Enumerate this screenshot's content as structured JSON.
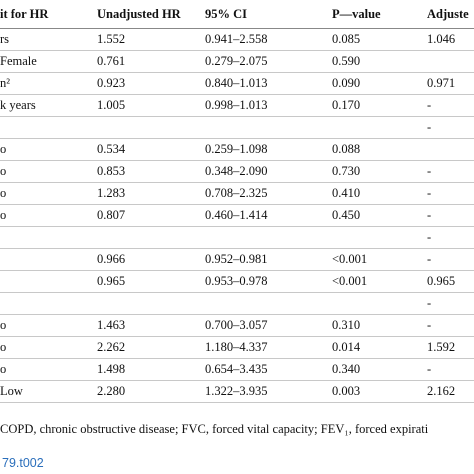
{
  "table": {
    "header": [
      "it for HR",
      "Unadjusted HR",
      "95% CI",
      "P—value",
      "Adjuste"
    ],
    "rows": [
      [
        "rs",
        "1.552",
        "0.941–2.558",
        "0.085",
        "1.046"
      ],
      [
        "Female",
        "0.761",
        "0.279–2.075",
        "0.590",
        null
      ],
      [
        "n²",
        "0.923",
        "0.840–1.013",
        "0.090",
        "0.971"
      ],
      [
        "k years",
        "1.005",
        "0.998–1.013",
        "0.170",
        "-"
      ],
      [
        null,
        null,
        null,
        null,
        "-"
      ],
      [
        "o",
        "0.534",
        "0.259–1.098",
        "0.088",
        null
      ],
      [
        "o",
        "0.853",
        "0.348–2.090",
        "0.730",
        "-"
      ],
      [
        "o",
        "1.283",
        "0.708–2.325",
        "0.410",
        "-"
      ],
      [
        "o",
        "0.807",
        "0.460–1.414",
        "0.450",
        "-"
      ],
      [
        null,
        null,
        null,
        null,
        "-"
      ],
      [
        null,
        "0.966",
        "0.952–0.981",
        "<0.001",
        "-"
      ],
      [
        null,
        "0.965",
        "0.953–0.978",
        "<0.001",
        "0.965"
      ],
      [
        null,
        null,
        null,
        null,
        "-"
      ],
      [
        "o",
        "1.463",
        "0.700–3.057",
        "0.310",
        "-"
      ],
      [
        "o",
        "2.262",
        "1.180–4.337",
        "0.014",
        "1.592"
      ],
      [
        "o",
        "1.498",
        "0.654–3.435",
        "0.340",
        "-"
      ],
      [
        "Low",
        "2.280",
        "1.322–3.935",
        "0.003",
        "2.162"
      ]
    ]
  },
  "footnote": "COPD, chronic obstructive disease; FVC, forced vital capacity; FEV₁, forced expirati",
  "link": "79.t002"
}
